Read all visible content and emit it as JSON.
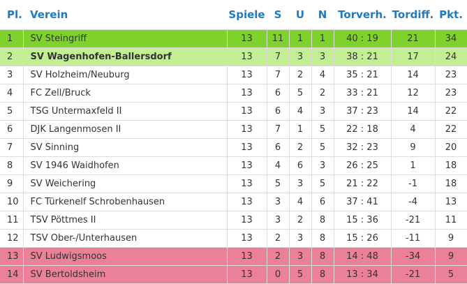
{
  "table": {
    "columns": [
      "Pl.",
      "Verein",
      "Spiele",
      "S",
      "U",
      "N",
      "Torverh.",
      "Tordiff.",
      "Pkt."
    ],
    "rows": [
      [
        1,
        "SV Steingriff",
        13,
        11,
        1,
        1,
        "40 : 19",
        21,
        34
      ],
      [
        2,
        "SV Wagenhofen-Ballersdorf",
        13,
        7,
        3,
        3,
        "38 : 21",
        17,
        24
      ],
      [
        3,
        "SV Holzheim/Neuburg",
        13,
        7,
        2,
        4,
        "35 : 21",
        14,
        23
      ],
      [
        4,
        "FC Zell/Bruck",
        13,
        6,
        5,
        2,
        "33 : 21",
        12,
        23
      ],
      [
        5,
        "TSG Untermaxfeld II",
        13,
        6,
        4,
        3,
        "37 : 23",
        14,
        22
      ],
      [
        6,
        "DJK Langenmosen II",
        13,
        7,
        1,
        5,
        "22 : 18",
        4,
        22
      ],
      [
        7,
        "SV Sinning",
        13,
        6,
        2,
        5,
        "32 : 23",
        9,
        20
      ],
      [
        8,
        "SV 1946 Waidhofen",
        13,
        4,
        6,
        3,
        "26 : 25",
        1,
        18
      ],
      [
        9,
        "SV Weichering",
        13,
        5,
        3,
        5,
        "21 : 22",
        -1,
        18
      ],
      [
        10,
        "FC Türkenelf Schrobenhausen",
        13,
        3,
        4,
        6,
        "37 : 41",
        -4,
        13
      ],
      [
        11,
        "TSV Pöttmes II",
        13,
        3,
        2,
        8,
        "15 : 36",
        -21,
        11
      ],
      [
        12,
        "TSV Ober-/Unterhausen",
        13,
        2,
        3,
        8,
        "15 : 26",
        -11,
        9
      ],
      [
        13,
        "SV Ludwigsmoos",
        13,
        2,
        3,
        8,
        "14 : 48",
        -34,
        9
      ],
      [
        14,
        "SV Bertoldsheim",
        13,
        0,
        5,
        8,
        "13 : 34",
        -21,
        5
      ]
    ]
  }
}
